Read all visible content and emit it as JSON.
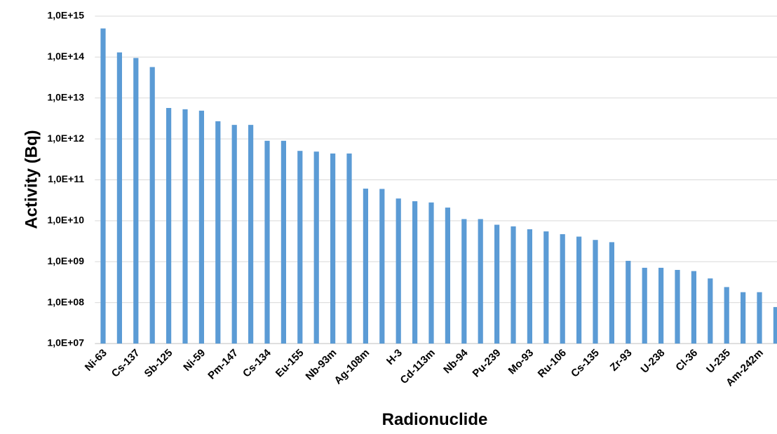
{
  "chart_data": {
    "type": "bar",
    "x_label": "Radionuclide",
    "y_label": "Activity (Bq)",
    "categories": [
      "Ni-63",
      null,
      "Cs-137",
      null,
      "Sb-125",
      null,
      "Ni-59",
      null,
      "Pm-147",
      null,
      "Cs-134",
      null,
      "Eu-155",
      null,
      "Nb-93m",
      null,
      "Ag-108m",
      null,
      "H-3",
      null,
      "Cd-113m",
      null,
      "Nb-94",
      null,
      "Pu-239",
      null,
      "Mo-93",
      null,
      "Ru-106",
      null,
      "Cs-135",
      null,
      "Zr-93",
      null,
      "U-238",
      null,
      "Cl-36",
      null,
      "U-235",
      null,
      "Am-242m",
      null
    ],
    "values": [
      500000000000000.0,
      130000000000000.0,
      95000000000000.0,
      57000000000000.0,
      5700000000000.0,
      5300000000000.0,
      4900000000000.0,
      2700000000000.0,
      2200000000000.0,
      2200000000000.0,
      900000000000.0,
      900000000000.0,
      510000000000.0,
      490000000000.0,
      440000000000.0,
      440000000000.0,
      61000000000.0,
      60000000000.0,
      35000000000.0,
      30000000000.0,
      28000000000.0,
      21000000000.0,
      11000000000.0,
      11000000000.0,
      8000000000.0,
      7300000000.0,
      6200000000.0,
      5500000000.0,
      4700000000.0,
      4100000000.0,
      3400000000.0,
      3000000000.0,
      1050000000.0,
      710000000.0,
      710000000.0,
      630000000.0,
      590000000.0,
      390000000.0,
      240000000.0,
      180000000.0,
      180000000.0,
      78000000.0
    ],
    "color": "#5b9bd5",
    "log_scale": true,
    "grid": true,
    "ylim": [
      10000000.0,
      1000000000000000.0
    ],
    "yticks": [
      {
        "value": 10000000.0,
        "label": "1,0E+07"
      },
      {
        "value": 100000000.0,
        "label": "1,0E+08"
      },
      {
        "value": 1000000000.0,
        "label": "1,0E+09"
      },
      {
        "value": 10000000000.0,
        "label": "1,0E+10"
      },
      {
        "value": 100000000000.0,
        "label": "1,0E+11"
      },
      {
        "value": 1000000000000.0,
        "label": "1,0E+12"
      },
      {
        "value": 10000000000000.0,
        "label": "1,0E+13"
      },
      {
        "value": 100000000000000.0,
        "label": "1,0E+14"
      },
      {
        "value": 1000000000000000.0,
        "label": "1,0E+15"
      }
    ]
  }
}
